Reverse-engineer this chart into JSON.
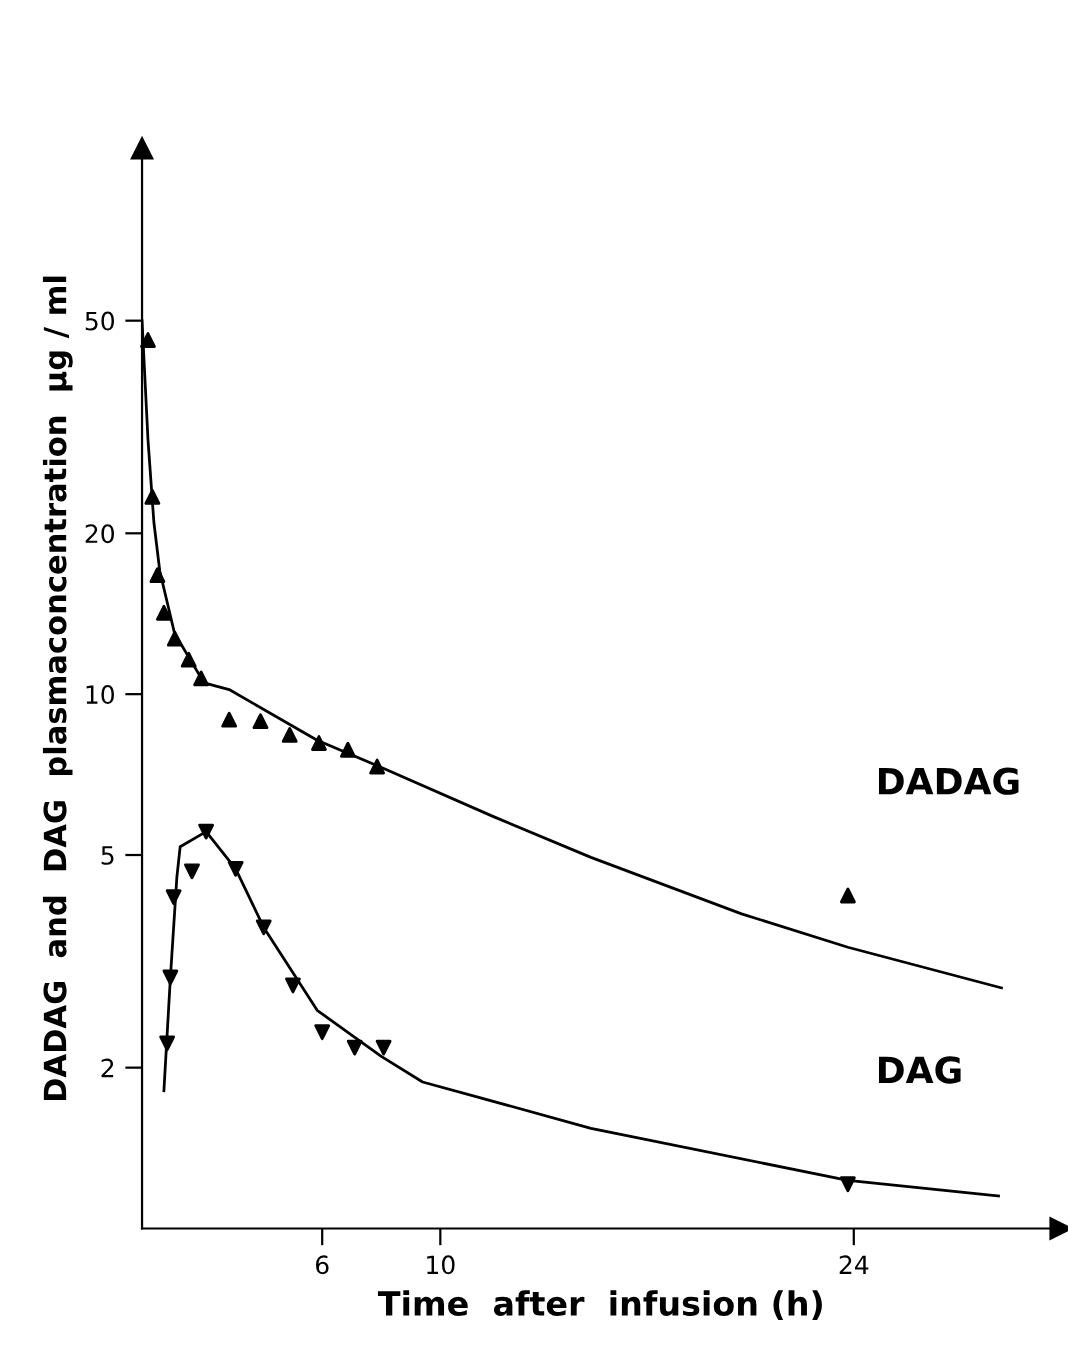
{
  "chart_data": {
    "type": "scatter",
    "xlabel": "Time  after  infusion (h)",
    "ylabel": "DADAG  and  DAG  plasmaconcentration  µg / ml",
    "x": [
      0.1,
      0.25,
      0.42,
      0.64,
      1.01,
      1.48,
      1.9,
      2.85,
      3.91,
      4.9,
      5.89,
      6.87,
      7.86,
      23.8
    ],
    "series": [
      {
        "name": "DADAG",
        "marker": "triangle",
        "color": "#000000",
        "values": [
          46,
          23.4,
          16.7,
          14.2,
          12.7,
          11.6,
          10.7,
          8.96,
          8.9,
          8.39,
          8.1,
          7.87,
          7.32,
          4.2
        ]
      },
      {
        "name": "DAG",
        "marker": "triangle_down",
        "color": "#000000",
        "x": [
          0.75,
          0.86,
          0.97,
          1.59,
          2.07,
          3.07,
          4.02,
          5.01,
          6.0,
          7.1,
          8.08,
          23.8
        ],
        "values": [
          2.22,
          2.95,
          4.17,
          4.66,
          5.53,
          4.71,
          3.66,
          2.85,
          2.33,
          2.18,
          2.18,
          1.21
        ]
      },
      {
        "type": "line",
        "color": "#000000",
        "x": [
          -0.1,
          0.1,
          0.3,
          0.5,
          1.0,
          2.0,
          2.85,
          5.83,
          7.93,
          11.8,
          15.1,
          20.2,
          23.8,
          29.0
        ],
        "values": [
          50,
          30,
          21,
          17,
          13,
          10.5,
          10.2,
          8.2,
          7.32,
          5.9,
          4.95,
          3.88,
          3.36,
          2.82
        ]
      },
      {
        "type": "line",
        "color": "#000000",
        "x": [
          0.64,
          0.86,
          1.08,
          1.19,
          2.07,
          3.07,
          4.02,
          5.83,
          8.0,
          9.4,
          11.3,
          15.1,
          23.8,
          28.9
        ],
        "values": [
          1.81,
          2.95,
          4.55,
          5.18,
          5.53,
          4.71,
          3.66,
          2.56,
          2.1,
          1.88,
          1.76,
          1.54,
          1.23,
          1.15
        ]
      }
    ],
    "log": "y",
    "xlim": [
      -0.1,
      31
    ],
    "ylim": [
      1,
      105
    ],
    "xticks": [
      6,
      10,
      24
    ],
    "yticks": [
      2,
      5,
      10,
      20,
      50
    ],
    "grid": false,
    "legend": false,
    "line_style": "solid"
  }
}
